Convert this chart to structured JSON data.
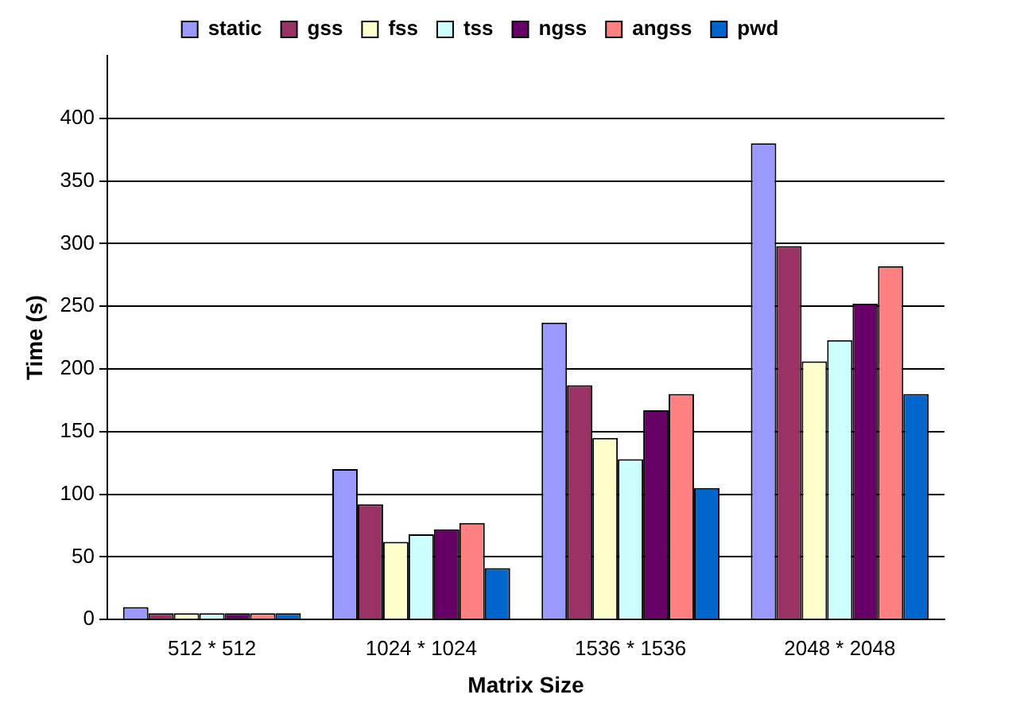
{
  "chart_data": {
    "type": "bar",
    "xlabel": "Matrix Size",
    "ylabel": "Time (s)",
    "categories": [
      "512 * 512",
      "1024 * 1024",
      "1536 * 1536",
      "2048 * 2048"
    ],
    "series": [
      {
        "name": "static",
        "color": "#9999ff",
        "values": [
          10,
          120,
          237,
          380
        ]
      },
      {
        "name": "gss",
        "color": "#993366",
        "values": [
          5,
          92,
          187,
          298
        ]
      },
      {
        "name": "fss",
        "color": "#ffffcc",
        "values": [
          5,
          62,
          145,
          206
        ]
      },
      {
        "name": "tss",
        "color": "#ccffff",
        "values": [
          5,
          68,
          128,
          223
        ]
      },
      {
        "name": "ngss",
        "color": "#660066",
        "values": [
          5,
          72,
          167,
          252
        ]
      },
      {
        "name": "angss",
        "color": "#ff8080",
        "values": [
          5,
          77,
          180,
          282
        ]
      },
      {
        "name": "pwd",
        "color": "#0066cc",
        "values": [
          5,
          41,
          105,
          180
        ]
      }
    ],
    "ylim": [
      0,
      450
    ],
    "yticks": [
      0,
      50,
      100,
      150,
      200,
      250,
      300,
      350,
      400
    ],
    "grid": "y",
    "legend": "top"
  }
}
